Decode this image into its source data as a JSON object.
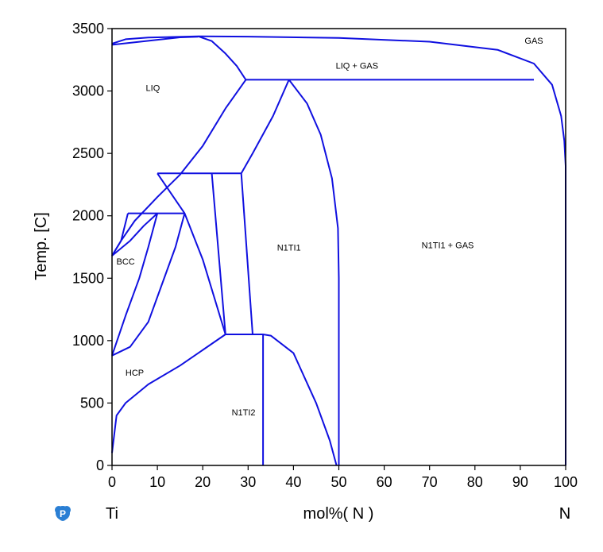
{
  "chart_data": {
    "type": "line",
    "xlabel": "mol%( N )",
    "ylabel": "Temp. [C]",
    "xlim": [
      0,
      100
    ],
    "ylim": [
      0,
      3500
    ],
    "x_ticks": [
      0,
      10,
      20,
      30,
      40,
      50,
      60,
      70,
      80,
      90,
      100
    ],
    "y_ticks": [
      0,
      500,
      1000,
      1500,
      2000,
      2500,
      3000,
      3500
    ],
    "element_left": "Ti",
    "element_right": "N",
    "line_color": "#1010e0",
    "region_labels": [
      {
        "text": "GAS",
        "x": 93,
        "y": 3380
      },
      {
        "text": "LIQ + GAS",
        "x": 54,
        "y": 3180
      },
      {
        "text": "LIQ",
        "x": 9,
        "y": 3000
      },
      {
        "text": "BCC",
        "x": 3,
        "y": 1610
      },
      {
        "text": "N1TI1",
        "x": 39,
        "y": 1720
      },
      {
        "text": "N1TI1 + GAS",
        "x": 74,
        "y": 1740
      },
      {
        "text": "HCP",
        "x": 5,
        "y": 720
      },
      {
        "text": "N1TI2",
        "x": 29,
        "y": 400
      }
    ],
    "series": [
      {
        "values": [
          [
            0,
            3370
          ],
          [
            5,
            3390
          ],
          [
            10,
            3410
          ],
          [
            15,
            3430
          ],
          [
            19,
            3435
          ]
        ]
      },
      {
        "values": [
          [
            0,
            3380
          ],
          [
            3,
            3415
          ],
          [
            8,
            3428
          ],
          [
            12,
            3432
          ],
          [
            19,
            3438
          ],
          [
            30,
            3436
          ],
          [
            50,
            3425
          ],
          [
            70,
            3395
          ],
          [
            85,
            3330
          ],
          [
            93,
            3220
          ],
          [
            97,
            3050
          ],
          [
            99,
            2800
          ],
          [
            99.7,
            2600
          ],
          [
            100,
            2400
          ],
          [
            100,
            0
          ]
        ]
      },
      {
        "values": [
          [
            19,
            3438
          ],
          [
            22,
            3400
          ],
          [
            25,
            3300
          ],
          [
            27.5,
            3200
          ],
          [
            29.5,
            3090
          ]
        ]
      },
      {
        "values": [
          [
            29.5,
            3090
          ],
          [
            93,
            3090
          ]
        ]
      },
      {
        "values": [
          [
            0,
            1680
          ],
          [
            2,
            1800
          ],
          [
            5,
            1960
          ],
          [
            10,
            2150
          ],
          [
            15,
            2330
          ],
          [
            20,
            2560
          ],
          [
            25,
            2860
          ],
          [
            29.5,
            3090
          ]
        ]
      },
      {
        "values": [
          [
            39,
            3090
          ],
          [
            35.5,
            2800
          ],
          [
            31,
            2500
          ],
          [
            28.5,
            2340
          ]
        ]
      },
      {
        "values": [
          [
            39,
            3090
          ],
          [
            43,
            2900
          ],
          [
            46,
            2650
          ],
          [
            48.5,
            2300
          ],
          [
            49.8,
            1900
          ],
          [
            50,
            1500
          ],
          [
            50,
            0
          ]
        ]
      },
      {
        "values": [
          [
            10,
            2340
          ],
          [
            28.5,
            2340
          ]
        ]
      },
      {
        "values": [
          [
            3.5,
            2020
          ],
          [
            16,
            2020
          ]
        ]
      },
      {
        "values": [
          [
            10,
            2340
          ],
          [
            16,
            2020
          ],
          [
            20,
            1650
          ],
          [
            25,
            1050
          ]
        ]
      },
      {
        "values": [
          [
            22,
            2340
          ],
          [
            25,
            1050
          ]
        ]
      },
      {
        "values": [
          [
            28.5,
            2340
          ],
          [
            31,
            1050
          ]
        ]
      },
      {
        "values": [
          [
            0,
            1680
          ],
          [
            2,
            1800
          ],
          [
            3.5,
            2020
          ]
        ]
      },
      {
        "values": [
          [
            0,
            1680
          ],
          [
            4,
            1800
          ],
          [
            7,
            1920
          ],
          [
            10,
            2020
          ]
        ]
      },
      {
        "values": [
          [
            0,
            880
          ],
          [
            3,
            1200
          ],
          [
            6,
            1500
          ],
          [
            8,
            1750
          ],
          [
            10,
            2020
          ]
        ]
      },
      {
        "values": [
          [
            0,
            880
          ],
          [
            4,
            950
          ],
          [
            8,
            1150
          ],
          [
            11,
            1450
          ],
          [
            14,
            1750
          ],
          [
            16,
            2020
          ]
        ]
      },
      {
        "values": [
          [
            0,
            100
          ],
          [
            1,
            400
          ],
          [
            3,
            500
          ],
          [
            8,
            650
          ],
          [
            15,
            800
          ],
          [
            25,
            1050
          ]
        ]
      },
      {
        "values": [
          [
            25,
            1050
          ],
          [
            31,
            1050
          ]
        ]
      },
      {
        "values": [
          [
            31,
            1050
          ],
          [
            33.3,
            1050
          ],
          [
            35,
            1040
          ],
          [
            40,
            900
          ],
          [
            45,
            500
          ],
          [
            48,
            200
          ],
          [
            49.5,
            0
          ]
        ]
      },
      {
        "values": [
          [
            33.3,
            1050
          ],
          [
            33.3,
            0
          ]
        ]
      }
    ]
  }
}
